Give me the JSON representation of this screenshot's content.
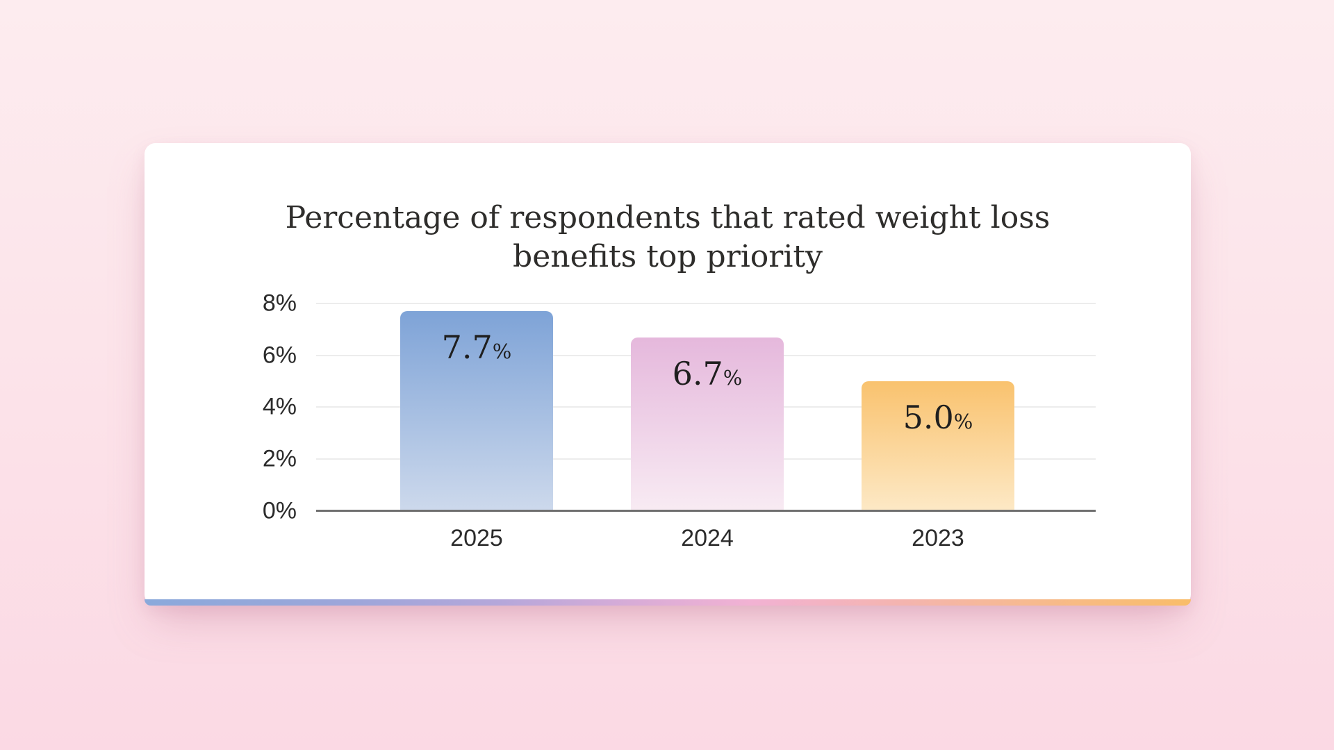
{
  "background": {
    "top": "#fdecef",
    "mid": "#fce4ea",
    "bottom": "#fbd9e4"
  },
  "card": {
    "bg": "#ffffff",
    "accent_strip_colors": [
      {
        "color": "#8aa9db",
        "stop": 0
      },
      {
        "color": "#9da6da",
        "stop": 20
      },
      {
        "color": "#b5a7da",
        "stop": 34
      },
      {
        "color": "#d9acd7",
        "stop": 47
      },
      {
        "color": "#f2b2d3",
        "stop": 58
      },
      {
        "color": "#f4b4b0",
        "stop": 72
      },
      {
        "color": "#f7ba8e",
        "stop": 85
      },
      {
        "color": "#f9bd69",
        "stop": 100
      }
    ]
  },
  "chart_data": {
    "type": "bar",
    "title": "Percentage of respondents that rated weight loss benefits top priority",
    "title_lines": [
      "Percentage of respondents that rated weight loss",
      "benefits top priority"
    ],
    "categories": [
      "2025",
      "2024",
      "2023"
    ],
    "values": [
      7.7,
      6.7,
      5.0
    ],
    "value_labels": [
      "7.7",
      "6.7",
      "5.0"
    ],
    "value_unit": "%",
    "ylim": [
      0,
      8
    ],
    "yticks": [
      {
        "value": 8,
        "label": "8%"
      },
      {
        "value": 6,
        "label": "6%"
      },
      {
        "value": 4,
        "label": "4%"
      },
      {
        "value": 2,
        "label": "2%"
      },
      {
        "value": 0,
        "label": "0%"
      }
    ],
    "grid": true,
    "legend": false,
    "xlabel": "",
    "ylabel": "",
    "bar_gradients": [
      {
        "top": "#7ea3d7",
        "bottom": "#cdd9ec"
      },
      {
        "top": "#e5b8dc",
        "bottom": "#f8ebf3"
      },
      {
        "top": "#f9c26e",
        "bottom": "#fde9c6"
      }
    ],
    "text_color": "#2b2b2b",
    "axis_color": "#6f6f6f",
    "gridline_color": "#ececec"
  }
}
